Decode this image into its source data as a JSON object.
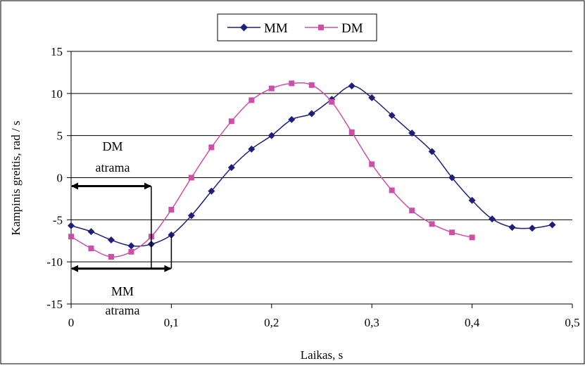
{
  "chart_data": {
    "type": "line",
    "xlabel": "Laikas, s",
    "ylabel": "Kampinis greitis, rad / s",
    "xlim": [
      0,
      0.5
    ],
    "ylim": [
      -15,
      15
    ],
    "x_ticks": [
      0,
      0.1,
      0.2,
      0.3,
      0.4,
      0.5
    ],
    "x_tick_labels": [
      "0",
      "0,1",
      "0,2",
      "0,3",
      "0,4",
      "0,5"
    ],
    "y_ticks": [
      -15,
      -10,
      -5,
      0,
      5,
      10,
      15
    ],
    "y_tick_labels": [
      "-15",
      "-10",
      "-5",
      "0",
      "5",
      "10",
      "15"
    ],
    "grid": "horizontal",
    "legend_position": "top-center",
    "series": [
      {
        "name": "MM",
        "color": "#1f1f7a",
        "marker": "diamond",
        "x": [
          0,
          0.02,
          0.04,
          0.06,
          0.08,
          0.1,
          0.12,
          0.14,
          0.16,
          0.18,
          0.2,
          0.22,
          0.24,
          0.26,
          0.28,
          0.3,
          0.32,
          0.34,
          0.36,
          0.38,
          0.4,
          0.42,
          0.44,
          0.46,
          0.48
        ],
        "values": [
          -5.7,
          -6.4,
          -7.4,
          -8.1,
          -7.9,
          -6.8,
          -4.5,
          -1.6,
          1.2,
          3.4,
          5.0,
          6.9,
          7.6,
          9.3,
          10.9,
          9.5,
          7.4,
          5.3,
          3.1,
          0.0,
          -2.7,
          -4.9,
          -5.9,
          -6.0,
          -5.6
        ]
      },
      {
        "name": "DM",
        "color": "#cc4fa8",
        "marker": "square",
        "x": [
          0,
          0.02,
          0.04,
          0.06,
          0.08,
          0.1,
          0.12,
          0.14,
          0.16,
          0.18,
          0.2,
          0.22,
          0.24,
          0.26,
          0.28,
          0.3,
          0.32,
          0.34,
          0.36,
          0.38,
          0.4
        ],
        "values": [
          -7.0,
          -8.4,
          -9.4,
          -8.8,
          -7.0,
          -3.8,
          0.0,
          3.6,
          6.7,
          9.2,
          10.6,
          11.2,
          11.0,
          9.0,
          5.4,
          1.6,
          -1.5,
          -3.9,
          -5.5,
          -6.5,
          -7.1
        ]
      }
    ],
    "annotations": [
      {
        "lines": [
          "DM",
          "atrama"
        ],
        "from_x": 0,
        "to_x": 0.08,
        "y": -1.0,
        "arrow": "double"
      },
      {
        "lines": [
          "MM",
          "atrama"
        ],
        "from_x": 0,
        "to_x": 0.1,
        "y": -10.8,
        "arrow": "double"
      }
    ]
  }
}
